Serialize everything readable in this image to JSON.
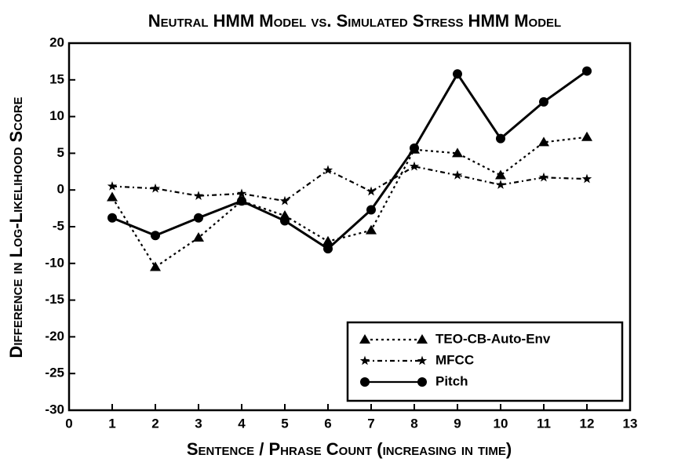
{
  "chart_data": {
    "type": "line",
    "title": "Neutral HMM Model vs. Simulated Stress HMM Model",
    "x_label": "Sentence / Phrase Count (increasing in time)",
    "y_label": "Difference in Log-Likelihood Score",
    "x": [
      1,
      2,
      3,
      4,
      5,
      6,
      7,
      8,
      9,
      10,
      11,
      12
    ],
    "series": [
      {
        "name": "TEO-CB-Auto-Env",
        "color": "#000000",
        "marker": "triangle",
        "dash": "dotted",
        "values": [
          -1,
          -10.5,
          -6.5,
          -1.5,
          -3.5,
          -7,
          -5.5,
          5.5,
          5,
          2,
          6.5,
          7.2
        ]
      },
      {
        "name": "MFCC",
        "color": "#000000",
        "marker": "star",
        "dash": "dashdot",
        "values": [
          0.5,
          0.2,
          -0.8,
          -0.5,
          -1.5,
          2.7,
          -0.2,
          3.2,
          2,
          0.7,
          1.7,
          1.5
        ]
      },
      {
        "name": "Pitch",
        "color": "#000000",
        "marker": "circle",
        "dash": "solid",
        "values": [
          -3.8,
          -6.2,
          -3.8,
          -1.5,
          -4.2,
          -8,
          -2.7,
          5.7,
          15.8,
          7,
          12,
          16.2
        ]
      }
    ],
    "xlim": [
      0,
      13
    ],
    "xticks": [
      0,
      1,
      2,
      3,
      4,
      5,
      6,
      7,
      8,
      9,
      10,
      11,
      12,
      13
    ],
    "ylim": [
      -30,
      20
    ],
    "yticks": [
      -30,
      -25,
      -20,
      -15,
      -10,
      -5,
      0,
      5,
      10,
      15,
      20
    ],
    "grid": false,
    "legend": "lower right"
  }
}
